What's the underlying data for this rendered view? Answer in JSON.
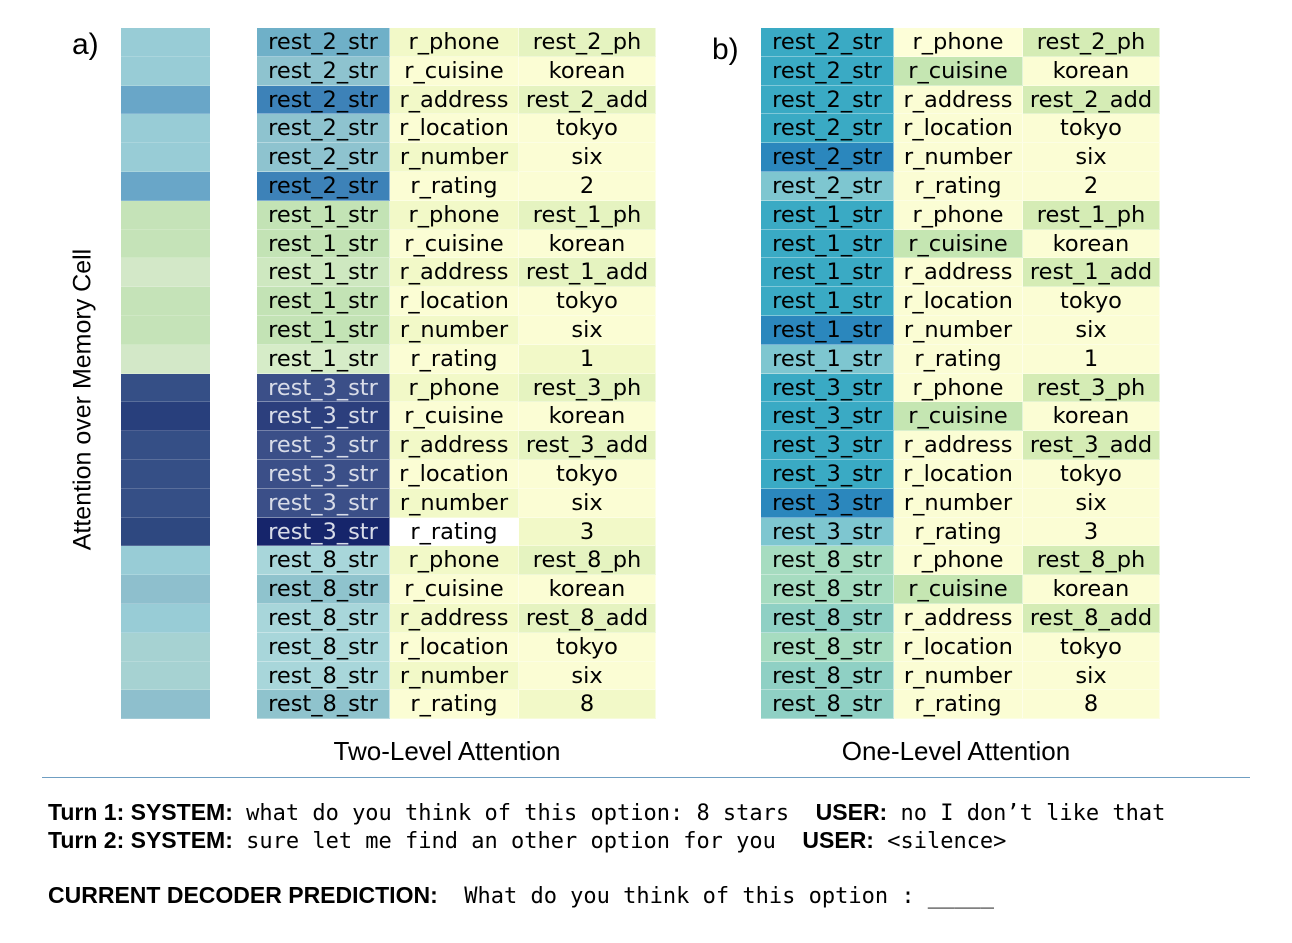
{
  "panel_a_label": "a)",
  "panel_b_label": "b)",
  "y_axis_label": "Attention over Memory Cell",
  "caption_a": "Two-Level Attention",
  "caption_b": "One-Level Attention",
  "rows": [
    [
      "rest_2_str",
      "r_phone",
      "rest_2_ph"
    ],
    [
      "rest_2_str",
      "r_cuisine",
      "korean"
    ],
    [
      "rest_2_str",
      "r_address",
      "rest_2_add"
    ],
    [
      "rest_2_str",
      "r_location",
      "tokyo"
    ],
    [
      "rest_2_str",
      "r_number",
      "six"
    ],
    [
      "rest_2_str",
      "r_rating",
      "2"
    ],
    [
      "rest_1_str",
      "r_phone",
      "rest_1_ph"
    ],
    [
      "rest_1_str",
      "r_cuisine",
      "korean"
    ],
    [
      "rest_1_str",
      "r_address",
      "rest_1_add"
    ],
    [
      "rest_1_str",
      "r_location",
      "tokyo"
    ],
    [
      "rest_1_str",
      "r_number",
      "six"
    ],
    [
      "rest_1_str",
      "r_rating",
      "1"
    ],
    [
      "rest_3_str",
      "r_phone",
      "rest_3_ph"
    ],
    [
      "rest_3_str",
      "r_cuisine",
      "korean"
    ],
    [
      "rest_3_str",
      "r_address",
      "rest_3_add"
    ],
    [
      "rest_3_str",
      "r_location",
      "tokyo"
    ],
    [
      "rest_3_str",
      "r_number",
      "six"
    ],
    [
      "rest_3_str",
      "r_rating",
      "3"
    ],
    [
      "rest_8_str",
      "r_phone",
      "rest_8_ph"
    ],
    [
      "rest_8_str",
      "r_cuisine",
      "korean"
    ],
    [
      "rest_8_str",
      "r_address",
      "rest_8_add"
    ],
    [
      "rest_8_str",
      "r_location",
      "tokyo"
    ],
    [
      "rest_8_str",
      "r_number",
      "six"
    ],
    [
      "rest_8_str",
      "r_rating",
      "8"
    ]
  ],
  "colors": {
    "strip_a": [
      "#98ccd6",
      "#98ccd6",
      "#69a6c8",
      "#98ccd6",
      "#98ccd6",
      "#69a6c8",
      "#c5e3b8",
      "#c5e3b8",
      "#d3e8c8",
      "#c5e3b8",
      "#c5e3b8",
      "#d3e8c8",
      "#354f86",
      "#283f7c",
      "#354f86",
      "#354f86",
      "#354f86",
      "#2e4880",
      "#98ccd6",
      "#8ebfcd",
      "#98ccd6",
      "#a6d2d2",
      "#a6d2d2",
      "#8ebfcd"
    ],
    "grid_a": [
      [
        "#6fb0c8",
        "#f2f9c8",
        "#e5f3c0"
      ],
      [
        "#8ec3cf",
        "#fbfdd4",
        "#fbfdd4"
      ],
      [
        "#3d82b8",
        "#f2f9c8",
        "#e5f3c0"
      ],
      [
        "#8ec3cf",
        "#fbfdd4",
        "#fbfdd4"
      ],
      [
        "#8ec3cf",
        "#f2f9c8",
        "#fbfdd4"
      ],
      [
        "#3d82b8",
        "#fbfdd4",
        "#fbfdd4"
      ],
      [
        "#c3e3b5",
        "#f2f9c8",
        "#e5f3c0"
      ],
      [
        "#c3e3b5",
        "#fbfdd4",
        "#fbfdd4"
      ],
      [
        "#cee8c0",
        "#f2f9c8",
        "#e5f3c0"
      ],
      [
        "#c3e3b5",
        "#fbfdd4",
        "#fbfdd4"
      ],
      [
        "#c3e3b5",
        "#f2f9c8",
        "#fbfdd4"
      ],
      [
        "#d6ecc8",
        "#fbfdd4",
        "#f2f9c8"
      ],
      [
        "#3b4f88",
        "#f2f9c8",
        "#e5f3c0"
      ],
      [
        "#2c3f7d",
        "#fbfdd4",
        "#fbfdd4"
      ],
      [
        "#3b4f88",
        "#f2f9c8",
        "#e5f3c0"
      ],
      [
        "#3b4f88",
        "#fbfdd4",
        "#fbfdd4"
      ],
      [
        "#3b4f88",
        "#f2f9c8",
        "#fbfdd4"
      ],
      [
        "#16256b",
        "#ffffff",
        "#f2f9c8"
      ],
      [
        "#a8d6da",
        "#f2f9c8",
        "#e5f3c0"
      ],
      [
        "#8fc3cd",
        "#fbfdd4",
        "#fbfdd4"
      ],
      [
        "#a8d6da",
        "#f2f9c8",
        "#e5f3c0"
      ],
      [
        "#a8d6da",
        "#fbfdd4",
        "#fbfdd4"
      ],
      [
        "#a8d6da",
        "#f2f9c8",
        "#fbfdd4"
      ],
      [
        "#8fc3cd",
        "#fbfdd4",
        "#f2f9c8"
      ]
    ],
    "grid_b": [
      [
        "#3aaac4",
        "#fdfed8",
        "#d5ecb5"
      ],
      [
        "#3aaac4",
        "#c5e6b2",
        "#fbfdd4"
      ],
      [
        "#3aaac4",
        "#fbfdd4",
        "#d5ecb5"
      ],
      [
        "#3aaac4",
        "#fbfdd4",
        "#fbfdd4"
      ],
      [
        "#2b87bd",
        "#fbfdd4",
        "#fbfdd4"
      ],
      [
        "#7ec6d0",
        "#fbfdd4",
        "#fbfdd4"
      ],
      [
        "#3aaac4",
        "#fbfdd4",
        "#d5ecb5"
      ],
      [
        "#3aaac4",
        "#c5e6b2",
        "#fbfdd4"
      ],
      [
        "#3aaac4",
        "#fbfdd4",
        "#d5ecb5"
      ],
      [
        "#3aaac4",
        "#fbfdd4",
        "#fbfdd4"
      ],
      [
        "#2b87bd",
        "#fbfdd4",
        "#fbfdd4"
      ],
      [
        "#7ec6d0",
        "#fbfdd4",
        "#fbfdd4"
      ],
      [
        "#3aaac4",
        "#fbfdd4",
        "#d5ecb5"
      ],
      [
        "#3aaac4",
        "#c5e6b2",
        "#fbfdd4"
      ],
      [
        "#3aaac4",
        "#fbfdd4",
        "#d5ecb5"
      ],
      [
        "#3aaac4",
        "#fbfdd4",
        "#fbfdd4"
      ],
      [
        "#2b87bd",
        "#fbfdd4",
        "#fbfdd4"
      ],
      [
        "#7ec6d0",
        "#fbfdd4",
        "#fbfdd4"
      ],
      [
        "#a6dcc0",
        "#fbfdd4",
        "#d5ecb5"
      ],
      [
        "#a6dcc0",
        "#c5e6b2",
        "#fbfdd4"
      ],
      [
        "#8fd0c4",
        "#fbfdd4",
        "#d5ecb5"
      ],
      [
        "#a6dcc0",
        "#fbfdd4",
        "#fbfdd4"
      ],
      [
        "#8fd0c4",
        "#fbfdd4",
        "#fbfdd4"
      ],
      [
        "#8fd0c4",
        "#fbfdd4",
        "#fbfdd4"
      ]
    ]
  },
  "dialog": {
    "turn1_prefix": "Turn 1: ",
    "turn1_sys_tag": "SYSTEM:",
    "turn1_sys_text": " what do you think of this option: 8 stars  ",
    "turn1_user_tag": "USER:",
    "turn1_user_text": " no I don’t like that",
    "turn2_prefix": "Turn 2: ",
    "turn2_sys_tag": "SYSTEM:",
    "turn2_sys_text": " sure let me find an other option for you  ",
    "turn2_user_tag": "USER:",
    "turn2_user_text": " <silence>"
  },
  "prediction": {
    "label": "CURRENT DECODER PREDICTION:",
    "text": "  What do you think of this option : _____"
  }
}
